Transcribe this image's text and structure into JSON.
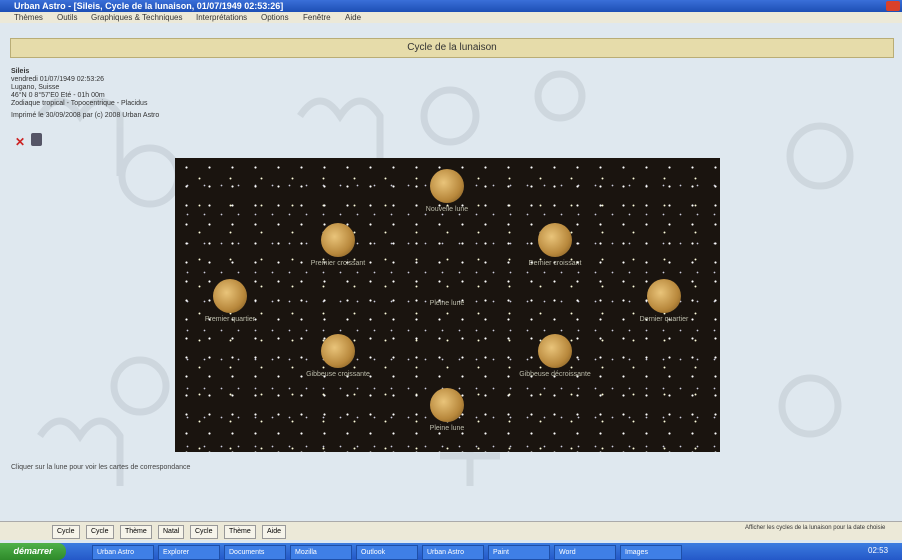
{
  "window": {
    "title": "Urban Astro - [Sileis, Cycle de la lunaison, 01/07/1949 02:53:26]",
    "menu": [
      "Thèmes",
      "Outils",
      "Graphiques & Techniques",
      "Interprétations",
      "Options",
      "Fenêtre",
      "Aide"
    ]
  },
  "header": {
    "title": "Cycle de la lunaison"
  },
  "info": {
    "lines": [
      "Sileis",
      "vendredi 01/07/1949 02:53:26",
      "Lugano, Suisse",
      "46°N 0 8°57'E0 Eté - 01h 00m",
      "Zodiaque tropical - Topocentrique - Placidus",
      "Imprimé le 30/09/2008 par (c) 2008 Urban Astro"
    ]
  },
  "moons": [
    {
      "label": "Nouvelle lune"
    },
    {
      "label": "Premier croissant"
    },
    {
      "label": "Dernier croissant"
    },
    {
      "label": "Premier quartier"
    },
    {
      "label": "Dernier quartier"
    },
    {
      "label": "Gibbeuse croissante"
    },
    {
      "label": "Gibbeuse décroissante"
    },
    {
      "label": "Pleine lune"
    }
  ],
  "image_caption": "Pleine lune",
  "footer_note": "Cliquer sur la lune pour voir les cartes de correspondance",
  "toolbar": {
    "buttons": [
      "Cycle",
      "Cycle",
      "Thème",
      "Natal",
      "Cycle",
      "Thème",
      "Aide"
    ],
    "status": "Afficher les cycles de la lunaison pour la date choisie"
  },
  "taskbar": {
    "start": "démarrer",
    "items": [
      "Urban Astro",
      "Explorer",
      "Documents",
      "Mozilla",
      "Outlook",
      "Urban Astro",
      "Paint",
      "Word",
      "Images"
    ],
    "clock": "02:53"
  }
}
